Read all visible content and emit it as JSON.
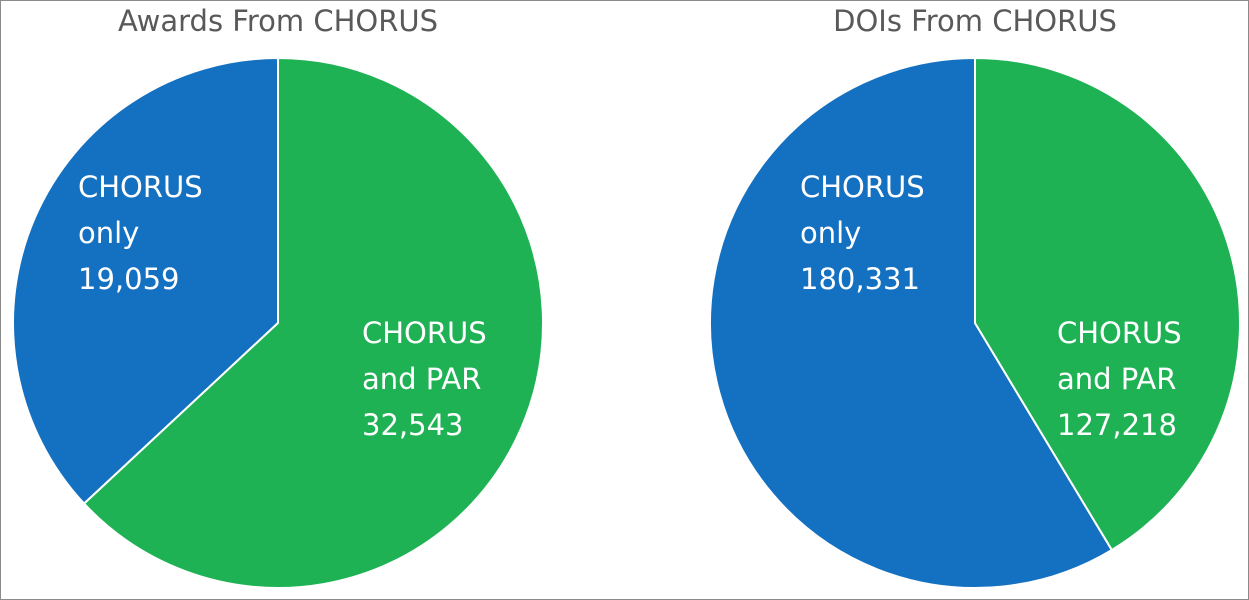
{
  "chart_data": [
    {
      "type": "pie",
      "title": "Awards From CHORUS",
      "categories": [
        "CHORUS only",
        "CHORUS and PAR"
      ],
      "values": [
        19059,
        32543
      ],
      "value_labels": [
        "19,059",
        "32,543"
      ],
      "colors": [
        "#1470c0",
        "#1fb255"
      ]
    },
    {
      "type": "pie",
      "title": "DOIs From CHORUS",
      "categories": [
        "CHORUS only",
        "CHORUS and PAR"
      ],
      "values": [
        180331,
        127218
      ],
      "value_labels": [
        "180,331",
        "127,218"
      ],
      "colors": [
        "#1470c0",
        "#1fb255"
      ]
    }
  ]
}
